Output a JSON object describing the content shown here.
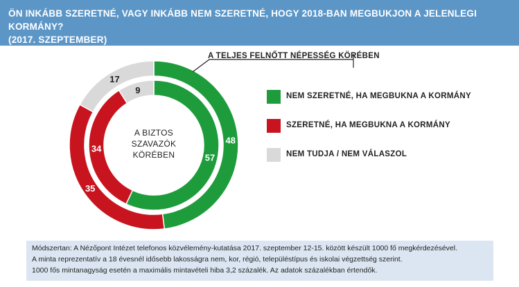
{
  "header": {
    "title_line1": "ÖN INKÁBB SZERETNÉ, VAGY INKÁBB NEM SZERETNÉ, HOGY 2018-BAN MEGBUKJON A JELENLEGI KORMÁNY?",
    "title_line2": "(2017. SZEPTEMBER)"
  },
  "chart_data": {
    "type": "pie",
    "variant": "nested-donut",
    "title": "ÖN INKÁBB SZERETNÉ, VAGY INKÁBB NEM SZERETNÉ, HOGY 2018-BAN MEGBUKJON A JELENLEGI KORMÁNY? (2017. SZEPTEMBER)",
    "categories": [
      "NEM SZERETNÉ, HA MEGBUKNA A KORMÁNY",
      "SZERETNÉ, HA MEGBUKNA A KORMÁNY",
      "NEM TUDJA / NEM VÁLASZOL"
    ],
    "colors": [
      "#1e9c3c",
      "#c8141e",
      "#d9d9d9"
    ],
    "series": [
      {
        "name": "A TELJES FELNŐTT NÉPESSÉG KÖRÉBEN",
        "ring": "outer",
        "values": [
          48,
          35,
          17
        ]
      },
      {
        "name": "A BIZTOS SZAVAZÓK KÖRÉBEN",
        "ring": "inner",
        "values": [
          57,
          34,
          9
        ]
      }
    ],
    "unit": "%",
    "legend_position": "right",
    "start_angle_deg": 0,
    "direction": "clockwise"
  },
  "labels": {
    "outer_ring": "A TELJES FELNŐTT NÉPESSÉG KÖRÉBEN",
    "inner_ring": [
      "A BIZTOS",
      "SZAVAZÓK",
      "KÖRÉBEN"
    ]
  },
  "legend": [
    {
      "label": "NEM SZERETNÉ, HA MEGBUKNA A KORMÁNY",
      "color": "#1e9c3c"
    },
    {
      "label": "SZERETNÉ, HA MEGBUKNA A KORMÁNY",
      "color": "#c8141e"
    },
    {
      "label": "NEM TUDJA / NEM VÁLASZOL",
      "color": "#d9d9d9"
    }
  ],
  "note": {
    "line1": "Módszertan: A Nézőpont Intézet telefonos közvélemény-kutatása 2017. szeptember 12-15. között készült 1000 fő megkérdezésével.",
    "line2": "A minta reprezentatív a 18 évesnél idősebb lakosságra nem, kor, régió, településtípus és iskolai végzettség szerint.",
    "line3": "1000 fős mintanagyság esetén a maximális mintavételi hiba 3,2 százalék. Az adatok százalékban értendők."
  }
}
